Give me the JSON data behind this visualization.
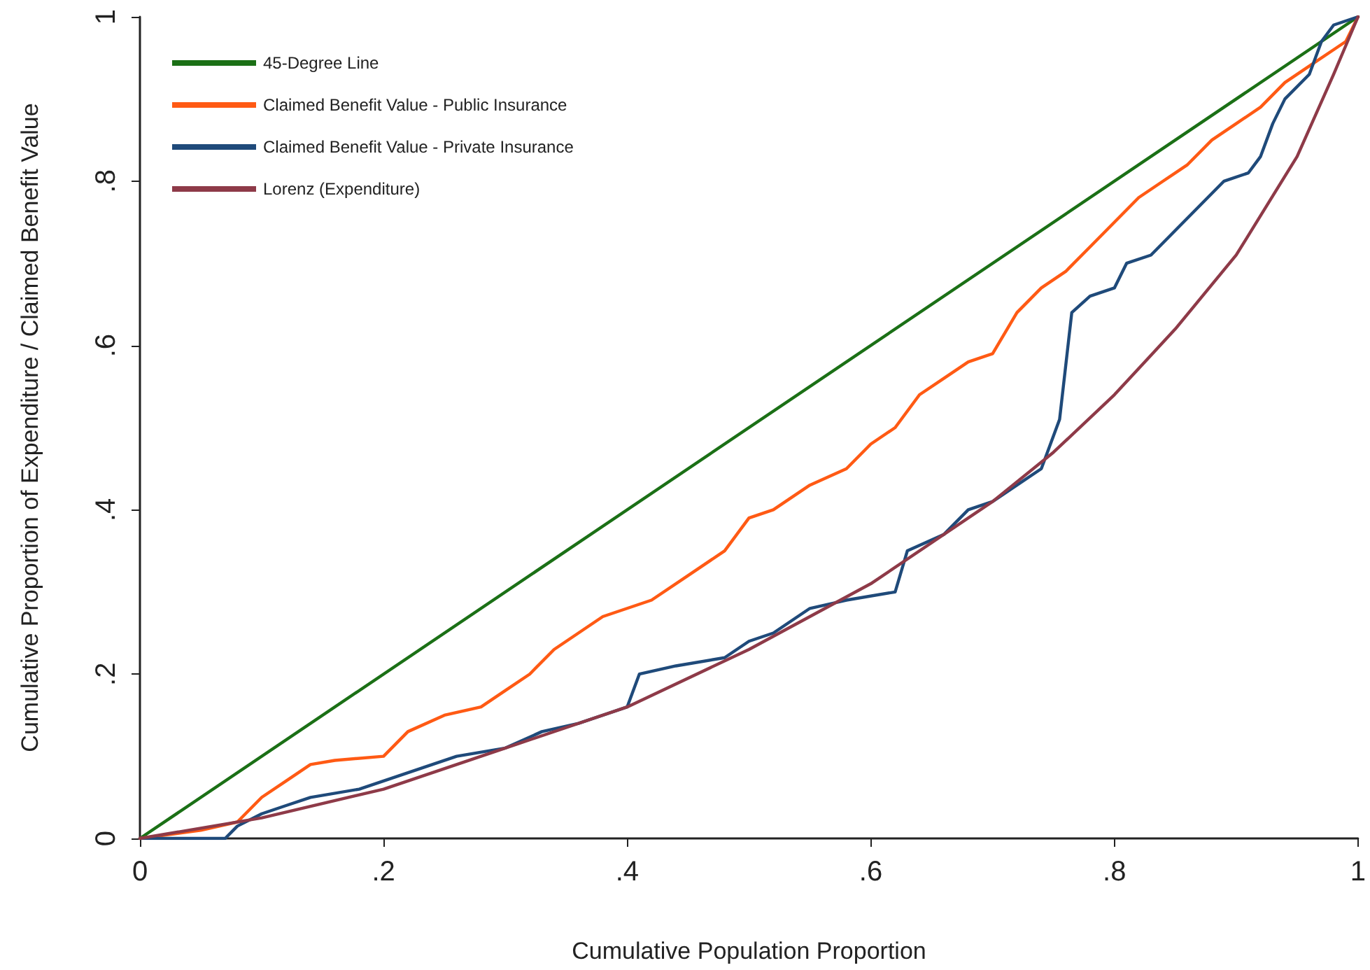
{
  "chart_data": {
    "type": "line",
    "xlabel": "Cumulative Population Proportion",
    "ylabel": "Cumulative Proportion of Expenditure / Claimed Benefit Value",
    "xlim": [
      0,
      1
    ],
    "ylim": [
      0,
      1
    ],
    "xticks": [
      {
        "value": 0,
        "label": "0"
      },
      {
        "value": 0.2,
        "label": ".2"
      },
      {
        "value": 0.4,
        "label": ".4"
      },
      {
        "value": 0.6,
        "label": ".6"
      },
      {
        "value": 0.8,
        "label": ".8"
      },
      {
        "value": 1,
        "label": "1"
      }
    ],
    "yticks": [
      {
        "value": 0,
        "label": "0"
      },
      {
        "value": 0.2,
        "label": ".2"
      },
      {
        "value": 0.4,
        "label": ".4"
      },
      {
        "value": 0.6,
        "label": ".6"
      },
      {
        "value": 0.8,
        "label": ".8"
      },
      {
        "value": 1,
        "label": "1"
      }
    ],
    "grid": false,
    "legend": "top left",
    "marker": "none",
    "line_style": "solid",
    "series": [
      {
        "name": "45-Degree Line",
        "color": "#1b7016",
        "x": [
          0,
          1
        ],
        "values": [
          0,
          1
        ]
      },
      {
        "name": "Claimed Benefit Value - Public Insurance",
        "color": "#ff5a14",
        "x": [
          0,
          0.05,
          0.08,
          0.1,
          0.12,
          0.14,
          0.16,
          0.2,
          0.22,
          0.25,
          0.28,
          0.3,
          0.32,
          0.34,
          0.36,
          0.38,
          0.42,
          0.45,
          0.48,
          0.5,
          0.52,
          0.55,
          0.58,
          0.6,
          0.62,
          0.64,
          0.66,
          0.68,
          0.7,
          0.72,
          0.74,
          0.76,
          0.78,
          0.8,
          0.82,
          0.84,
          0.86,
          0.88,
          0.9,
          0.92,
          0.94,
          0.96,
          0.98,
          0.99,
          1
        ],
        "values": [
          0,
          0.01,
          0.02,
          0.05,
          0.07,
          0.09,
          0.095,
          0.1,
          0.13,
          0.15,
          0.16,
          0.18,
          0.2,
          0.23,
          0.25,
          0.27,
          0.29,
          0.32,
          0.35,
          0.39,
          0.4,
          0.43,
          0.45,
          0.48,
          0.5,
          0.54,
          0.56,
          0.58,
          0.59,
          0.64,
          0.67,
          0.69,
          0.72,
          0.75,
          0.78,
          0.8,
          0.82,
          0.85,
          0.87,
          0.89,
          0.92,
          0.94,
          0.96,
          0.97,
          1
        ]
      },
      {
        "name": "Claimed Benefit Value - Private Insurance",
        "color": "#1f4a7a",
        "x": [
          0,
          0.07,
          0.08,
          0.1,
          0.12,
          0.14,
          0.18,
          0.2,
          0.22,
          0.24,
          0.26,
          0.3,
          0.33,
          0.36,
          0.4,
          0.41,
          0.44,
          0.48,
          0.5,
          0.52,
          0.55,
          0.58,
          0.62,
          0.63,
          0.66,
          0.68,
          0.7,
          0.72,
          0.74,
          0.755,
          0.765,
          0.78,
          0.8,
          0.81,
          0.83,
          0.85,
          0.87,
          0.89,
          0.91,
          0.92,
          0.93,
          0.94,
          0.96,
          0.97,
          0.98,
          1
        ],
        "values": [
          0,
          0,
          0.015,
          0.03,
          0.04,
          0.05,
          0.06,
          0.07,
          0.08,
          0.09,
          0.1,
          0.11,
          0.13,
          0.14,
          0.16,
          0.2,
          0.21,
          0.22,
          0.24,
          0.25,
          0.28,
          0.29,
          0.3,
          0.35,
          0.37,
          0.4,
          0.41,
          0.43,
          0.45,
          0.51,
          0.64,
          0.66,
          0.67,
          0.7,
          0.71,
          0.74,
          0.77,
          0.8,
          0.81,
          0.83,
          0.87,
          0.9,
          0.93,
          0.97,
          0.99,
          1
        ]
      },
      {
        "name": "Lorenz (Expenditure)",
        "color": "#8e3a48",
        "x": [
          0,
          0.1,
          0.2,
          0.3,
          0.4,
          0.5,
          0.6,
          0.7,
          0.75,
          0.8,
          0.85,
          0.9,
          0.95,
          0.98,
          1
        ],
        "values": [
          0,
          0.025,
          0.06,
          0.11,
          0.16,
          0.23,
          0.31,
          0.41,
          0.47,
          0.54,
          0.62,
          0.71,
          0.83,
          0.93,
          1
        ]
      }
    ]
  }
}
